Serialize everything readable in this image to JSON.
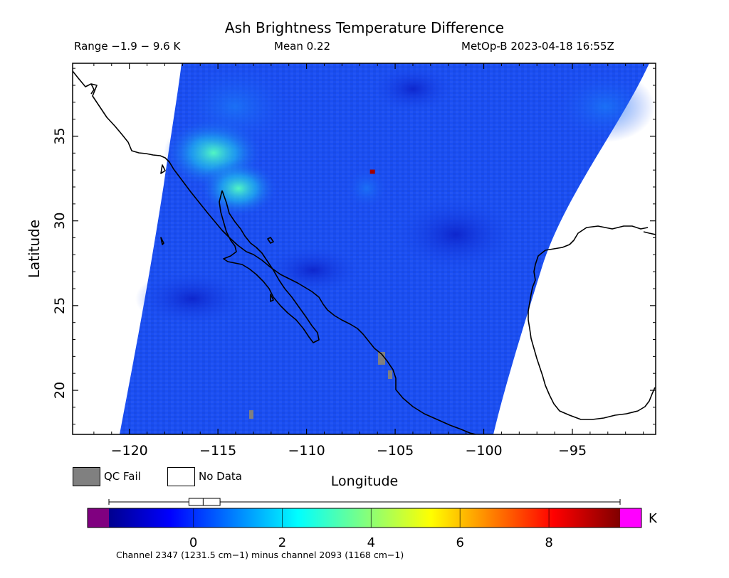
{
  "header": {
    "title": "Ash Brightness Temperature Difference",
    "range_text": "Range −1.9 − 9.6 K",
    "mean_text": "Mean 0.22",
    "satellite_time": "MetOp-B 2023-04-18 16:55Z"
  },
  "map": {
    "xlabel": "Longitude",
    "ylabel": "Latitude",
    "lon_range": [
      -123.2,
      -90.3
    ],
    "lat_range": [
      17.4,
      39.3
    ],
    "lon_ticks": [
      {
        "value": -120,
        "label": "−120"
      },
      {
        "value": -115,
        "label": "−115"
      },
      {
        "value": -110,
        "label": "−110"
      },
      {
        "value": -105,
        "label": "−105"
      },
      {
        "value": -100,
        "label": "−100"
      },
      {
        "value": -95,
        "label": "−95"
      }
    ],
    "lat_ticks": [
      {
        "value": 35,
        "label": "35"
      },
      {
        "value": 30,
        "label": "30"
      },
      {
        "value": 25,
        "label": "25"
      },
      {
        "value": 20,
        "label": "20"
      }
    ],
    "swath_color": "#1a4ef2",
    "hotspot": {
      "lon": -106.3,
      "lat": 32.9,
      "color": "#a00000"
    }
  },
  "legend": {
    "qc_fail_label": "QC Fail",
    "no_data_label": "No Data",
    "qc_fail_color": "#808080",
    "no_data_color": "#ffffff"
  },
  "colorbar": {
    "min": -1.9,
    "max": 9.6,
    "unit": "K",
    "ticks": [
      {
        "value": 0,
        "label": "0"
      },
      {
        "value": 2,
        "label": "2"
      },
      {
        "value": 4,
        "label": "4"
      },
      {
        "value": 6,
        "label": "6"
      },
      {
        "value": 8,
        "label": "8"
      }
    ],
    "under_color": "#800080",
    "over_color": "#ff00ff",
    "boxplot": {
      "whisker_low": -1.9,
      "q1": -0.1,
      "median": 0.22,
      "q3": 0.6,
      "whisker_high": 9.6
    }
  },
  "footnote": "Channel 2347 (1231.5 cm−1) minus channel 2093 (1168 cm−1)"
}
